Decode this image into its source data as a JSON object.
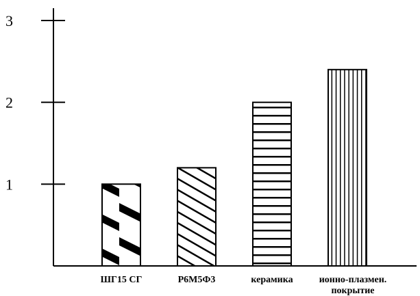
{
  "chart_data": {
    "type": "bar",
    "categories": [
      "ШГ15 СГ",
      "Р6М5Ф3",
      "керамика",
      "ионно-плазмен. покрытие"
    ],
    "category_lines": [
      [
        "ШГ15 СГ"
      ],
      [
        "Р6М5Ф3"
      ],
      [
        "керамика"
      ],
      [
        "ионно-плазмен.",
        "покрытие"
      ]
    ],
    "values": [
      1,
      1.2,
      2,
      2.4
    ],
    "patterns": [
      "thick-diagonal",
      "thin-diagonal",
      "horizontal",
      "vertical"
    ],
    "ylim": [
      0,
      3
    ],
    "yticks": [
      1,
      2,
      3
    ],
    "title": "",
    "xlabel": "",
    "ylabel": "",
    "grid": false,
    "colors": {
      "stroke": "#000000",
      "fill": "#ffffff"
    }
  }
}
